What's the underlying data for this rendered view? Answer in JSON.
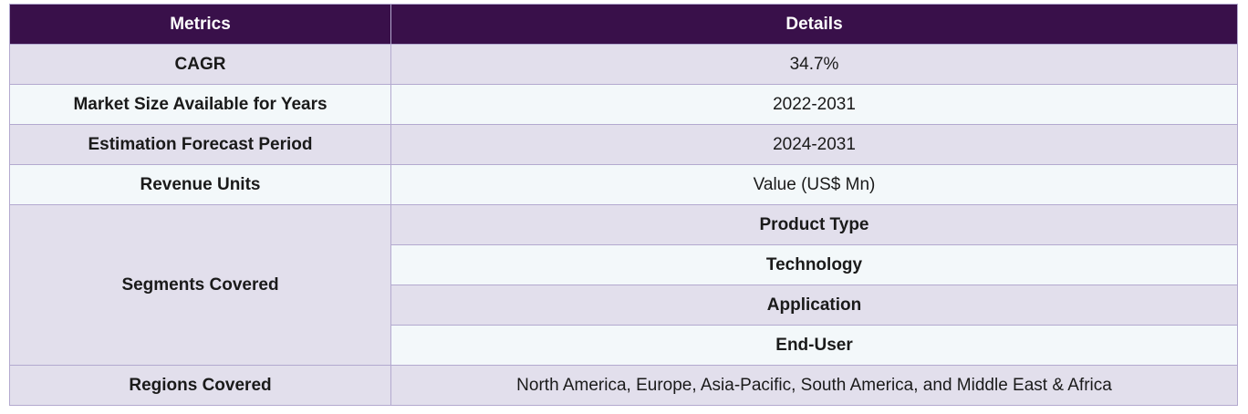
{
  "table": {
    "headers": {
      "metrics": "Metrics",
      "details": "Details"
    },
    "rows": [
      {
        "metric": "CAGR",
        "detail": "34.7%"
      },
      {
        "metric": "Market Size Available for Years",
        "detail": "2022-2031"
      },
      {
        "metric": "Estimation Forecast Period",
        "detail": "2024-2031"
      },
      {
        "metric": "Revenue Units",
        "detail": "Value (US$ Mn)"
      }
    ],
    "segments": {
      "metric": "Segments Covered",
      "items": [
        "Product Type",
        "Technology",
        "Application",
        "End-User"
      ]
    },
    "regions": {
      "metric": "Regions Covered",
      "detail": "North America, Europe, Asia-Pacific, South America, and Middle East & Africa"
    }
  },
  "colors": {
    "header_bg": "#39104a",
    "row_shade": "#e2dfec",
    "row_light": "#f3f8fa",
    "border": "#b3a9cf"
  }
}
